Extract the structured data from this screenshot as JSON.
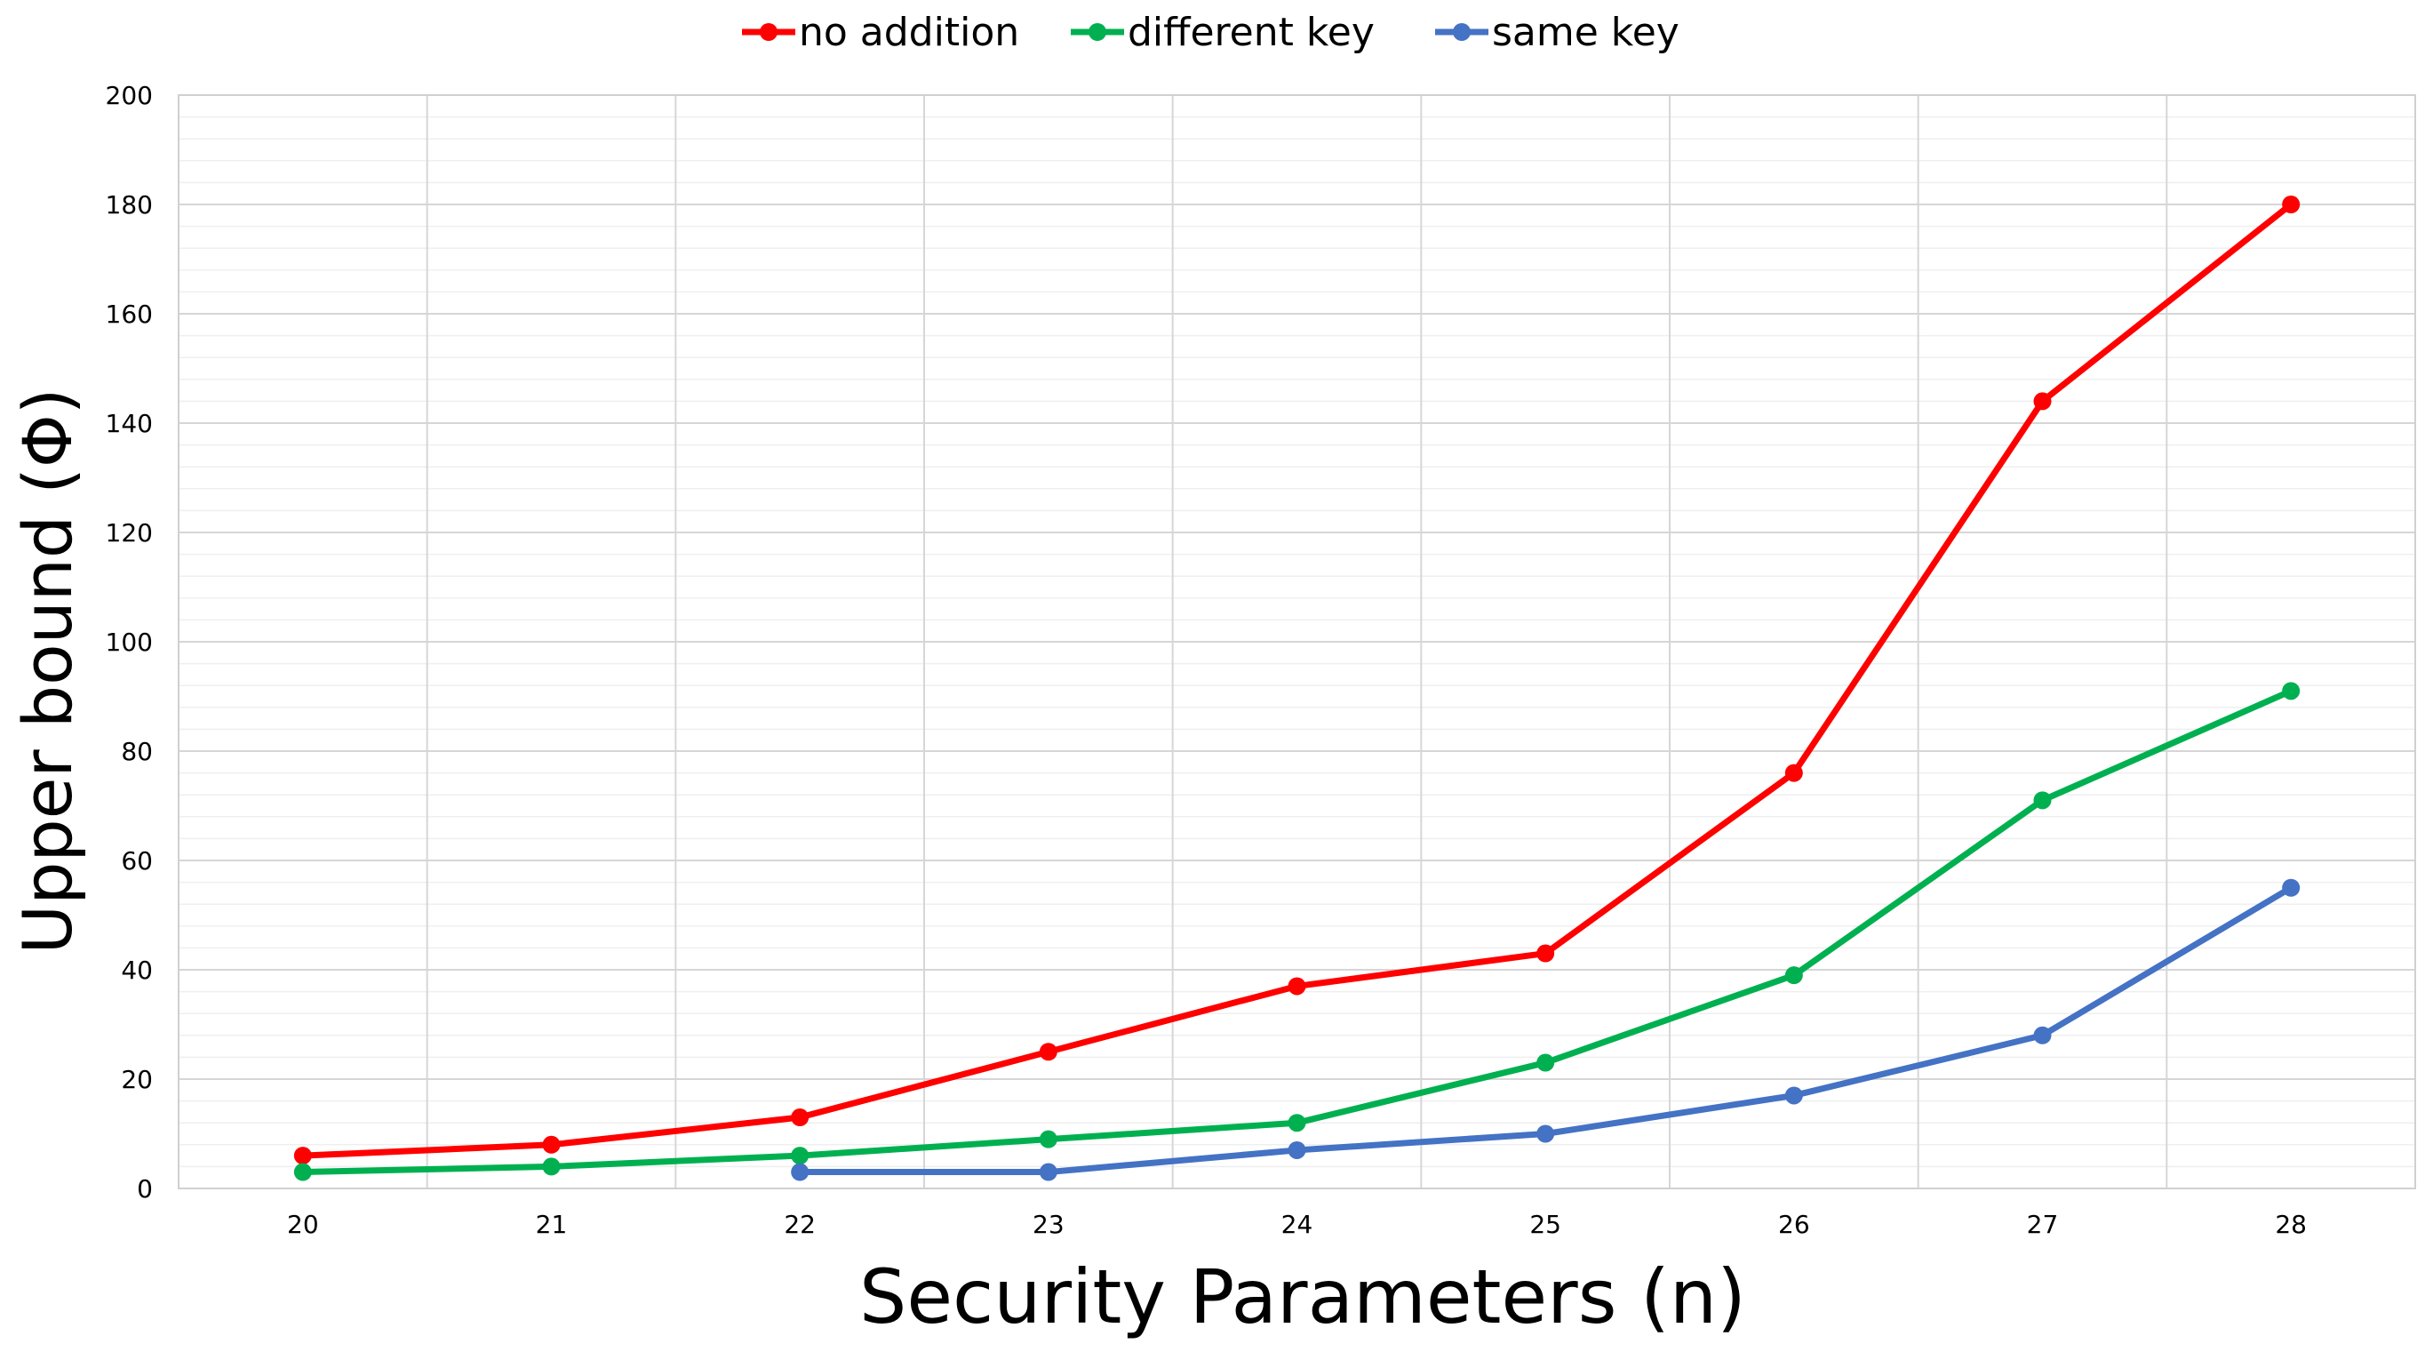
{
  "chart_data": {
    "type": "line",
    "title": "",
    "xlabel": "Security Parameters (n)",
    "ylabel": "Upper bound (Φ)",
    "x": [
      20,
      21,
      22,
      23,
      24,
      25,
      26,
      27,
      28
    ],
    "ylim": [
      0,
      200
    ],
    "y_ticks": [
      0,
      20,
      40,
      60,
      80,
      100,
      120,
      140,
      160,
      180,
      200
    ],
    "grid": true,
    "legend_position": "top-center",
    "series": [
      {
        "name": "no addition",
        "color": "#ff0000",
        "points": [
          [
            20,
            6
          ],
          [
            21,
            8
          ],
          [
            22,
            13
          ],
          [
            23,
            25
          ],
          [
            24,
            37
          ],
          [
            25,
            43
          ],
          [
            26,
            76
          ],
          [
            27,
            144
          ],
          [
            28,
            180
          ]
        ]
      },
      {
        "name": "different key",
        "color": "#00b050",
        "points": [
          [
            20,
            3
          ],
          [
            21,
            4
          ],
          [
            22,
            6
          ],
          [
            23,
            9
          ],
          [
            24,
            12
          ],
          [
            25,
            23
          ],
          [
            26,
            39
          ],
          [
            27,
            71
          ],
          [
            28,
            91
          ]
        ]
      },
      {
        "name": "same key",
        "color": "#4472c4",
        "points": [
          [
            22,
            3
          ],
          [
            23,
            3
          ],
          [
            24,
            7
          ],
          [
            25,
            10
          ],
          [
            26,
            17
          ],
          [
            27,
            28
          ],
          [
            28,
            55
          ]
        ]
      }
    ]
  }
}
